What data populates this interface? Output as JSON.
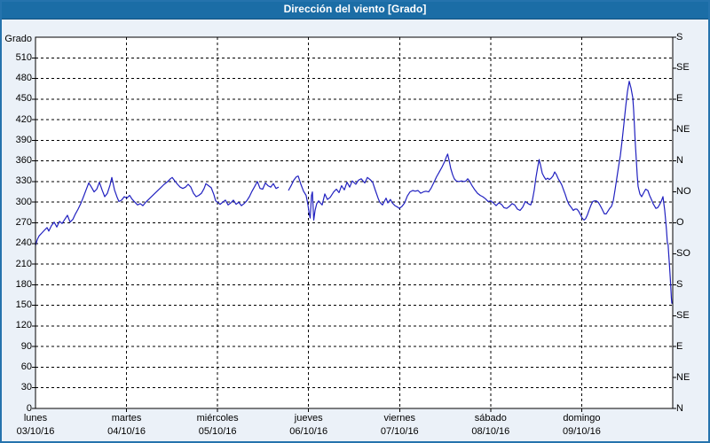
{
  "window": {
    "title": "Dirección del viento [Grado]"
  },
  "colors": {
    "titlebar": "#1B6DA6",
    "titlebar_text": "#FFFFFF",
    "frame_border": "#2573AD",
    "background": "#EBF1F8",
    "plot_background": "#FFFFFF",
    "grid": "#000000",
    "axis_text": "#000000",
    "line": "#2121C0"
  },
  "chart_data": {
    "type": "line",
    "title": "Dirección del viento [Grado]",
    "grid": "dashed",
    "y_left": {
      "label": "Grado",
      "min": 0,
      "max": 540,
      "step": 30,
      "tick_labels": [
        0,
        30,
        60,
        90,
        120,
        150,
        180,
        210,
        240,
        270,
        300,
        330,
        360,
        390,
        420,
        450,
        480,
        510
      ]
    },
    "y_right": {
      "step_deg": 45,
      "tick_labels_bottom_to_top": [
        "N",
        "NE",
        "E",
        "SE",
        "S",
        "SO",
        "O",
        "NO",
        "N",
        "NE",
        "E",
        "SE",
        "S"
      ]
    },
    "x": {
      "range_days": [
        0,
        7
      ],
      "days": [
        {
          "name": "lunes",
          "date": "03/10/16"
        },
        {
          "name": "martes",
          "date": "04/10/16"
        },
        {
          "name": "miércoles",
          "date": "05/10/16"
        },
        {
          "name": "jueves",
          "date": "06/10/16"
        },
        {
          "name": "viernes",
          "date": "07/10/16"
        },
        {
          "name": "sábado",
          "date": "08/10/16"
        },
        {
          "name": "domingo",
          "date": "09/10/16"
        }
      ]
    },
    "series": [
      {
        "name": "Dirección del viento",
        "unit": "Grado",
        "color": "#2121C0",
        "points": [
          [
            0,
            237
          ],
          [
            0.02,
            246
          ],
          [
            0.04,
            251
          ],
          [
            0.068,
            255
          ],
          [
            0.097,
            259
          ],
          [
            0.127,
            263
          ],
          [
            0.146,
            258
          ],
          [
            0.175,
            266
          ],
          [
            0.205,
            271
          ],
          [
            0.234,
            264
          ],
          [
            0.263,
            272
          ],
          [
            0.292,
            269
          ],
          [
            0.322,
            275
          ],
          [
            0.351,
            281
          ],
          [
            0.38,
            271
          ],
          [
            0.41,
            275
          ],
          [
            0.439,
            283
          ],
          [
            0.468,
            290
          ],
          [
            0.497,
            298
          ],
          [
            0.527,
            308
          ],
          [
            0.556,
            318
          ],
          [
            0.585,
            328
          ],
          [
            0.614,
            322
          ],
          [
            0.643,
            315
          ],
          [
            0.673,
            319
          ],
          [
            0.702,
            329
          ],
          [
            0.731,
            318
          ],
          [
            0.76,
            308
          ],
          [
            0.79,
            313
          ],
          [
            0.819,
            325
          ],
          [
            0.838,
            336
          ],
          [
            0.868,
            318
          ],
          [
            0.897,
            307
          ],
          [
            0.916,
            301
          ],
          [
            0.946,
            303
          ],
          [
            0.975,
            308
          ],
          [
            1.004,
            306
          ],
          [
            1.033,
            310
          ],
          [
            1.063,
            304
          ],
          [
            1.092,
            300
          ],
          [
            1.121,
            296
          ],
          [
            1.15,
            298
          ],
          [
            1.18,
            295
          ],
          [
            1.219,
            301
          ],
          [
            1.258,
            306
          ],
          [
            1.297,
            311
          ],
          [
            1.336,
            316
          ],
          [
            1.375,
            321
          ],
          [
            1.414,
            326
          ],
          [
            1.453,
            330
          ],
          [
            1.482,
            334
          ],
          [
            1.501,
            336
          ],
          [
            1.531,
            331
          ],
          [
            1.56,
            326
          ],
          [
            1.589,
            322
          ],
          [
            1.618,
            320
          ],
          [
            1.648,
            322
          ],
          [
            1.677,
            326
          ],
          [
            1.706,
            322
          ],
          [
            1.735,
            313
          ],
          [
            1.765,
            308
          ],
          [
            1.794,
            310
          ],
          [
            1.823,
            313
          ],
          [
            1.852,
            320
          ],
          [
            1.872,
            327
          ],
          [
            1.901,
            324
          ],
          [
            1.93,
            321
          ],
          [
            1.96,
            311
          ],
          [
            1.979,
            302
          ],
          [
            1.999,
            300
          ],
          [
            2.028,
            297
          ],
          [
            2.057,
            300
          ],
          [
            2.086,
            303
          ],
          [
            2.116,
            296
          ],
          [
            2.145,
            299
          ],
          [
            2.174,
            303
          ],
          [
            2.203,
            297
          ],
          [
            2.233,
            300
          ],
          [
            2.262,
            295
          ],
          [
            2.291,
            298
          ],
          [
            2.32,
            302
          ],
          [
            2.35,
            308
          ],
          [
            2.379,
            316
          ],
          [
            2.408,
            323
          ],
          [
            2.437,
            330
          ],
          [
            2.467,
            320
          ],
          [
            2.496,
            319
          ],
          [
            2.525,
            328
          ],
          [
            2.554,
            324
          ],
          [
            2.584,
            322
          ],
          [
            2.613,
            327
          ],
          [
            2.642,
            320
          ],
          [
            2.671,
            322
          ],
          [
            2.7,
            null
          ],
          [
            2.779,
            317
          ],
          [
            2.808,
            324
          ],
          [
            2.837,
            332
          ],
          [
            2.866,
            337
          ],
          [
            2.886,
            338
          ],
          [
            2.915,
            326
          ],
          [
            2.944,
            316
          ],
          [
            2.973,
            310
          ],
          [
            2.993,
            296
          ],
          [
            3.007,
            283
          ],
          [
            3.017,
            277
          ],
          [
            3.032,
            310
          ],
          [
            3.042,
            315
          ],
          [
            3.056,
            274
          ],
          [
            3.071,
            288
          ],
          [
            3.09,
            298
          ],
          [
            3.11,
            302
          ],
          [
            3.129,
            299
          ],
          [
            3.149,
            296
          ],
          [
            3.178,
            312
          ],
          [
            3.207,
            304
          ],
          [
            3.237,
            307
          ],
          [
            3.276,
            315
          ],
          [
            3.305,
            319
          ],
          [
            3.334,
            314
          ],
          [
            3.363,
            324
          ],
          [
            3.393,
            318
          ],
          [
            3.422,
            329
          ],
          [
            3.451,
            322
          ],
          [
            3.48,
            331
          ],
          [
            3.519,
            326
          ],
          [
            3.548,
            332
          ],
          [
            3.578,
            334
          ],
          [
            3.617,
            328
          ],
          [
            3.646,
            336
          ],
          [
            3.675,
            333
          ],
          [
            3.704,
            329
          ],
          [
            3.734,
            317
          ],
          [
            3.763,
            306
          ],
          [
            3.782,
            300
          ],
          [
            3.812,
            296
          ],
          [
            3.831,
            301
          ],
          [
            3.851,
            306
          ],
          [
            3.87,
            299
          ],
          [
            3.899,
            304
          ],
          [
            3.919,
            299
          ],
          [
            3.948,
            295
          ],
          [
            3.977,
            293
          ],
          [
            3.997,
            291
          ],
          [
            4.026,
            294
          ],
          [
            4.055,
            299
          ],
          [
            4.085,
            309
          ],
          [
            4.114,
            315
          ],
          [
            4.143,
            317
          ],
          [
            4.172,
            316
          ],
          [
            4.202,
            317
          ],
          [
            4.231,
            313
          ],
          [
            4.26,
            315
          ],
          [
            4.289,
            316
          ],
          [
            4.319,
            315
          ],
          [
            4.348,
            321
          ],
          [
            4.377,
            329
          ],
          [
            4.406,
            337
          ],
          [
            4.436,
            344
          ],
          [
            4.465,
            351
          ],
          [
            4.494,
            359
          ],
          [
            4.514,
            366
          ],
          [
            4.528,
            370
          ],
          [
            4.543,
            361
          ],
          [
            4.562,
            349
          ],
          [
            4.582,
            340
          ],
          [
            4.601,
            334
          ],
          [
            4.621,
            331
          ],
          [
            4.65,
            330
          ],
          [
            4.679,
            331
          ],
          [
            4.709,
            330
          ],
          [
            4.728,
            331
          ],
          [
            4.748,
            334
          ],
          [
            4.767,
            331
          ],
          [
            4.796,
            324
          ],
          [
            4.826,
            318
          ],
          [
            4.855,
            313
          ],
          [
            4.884,
            310
          ],
          [
            4.913,
            308
          ],
          [
            4.943,
            305
          ],
          [
            4.972,
            301
          ],
          [
            5.001,
            302
          ],
          [
            5.03,
            299
          ],
          [
            5.06,
            295
          ],
          [
            5.089,
            299
          ],
          [
            5.118,
            297
          ],
          [
            5.147,
            292
          ],
          [
            5.177,
            291
          ],
          [
            5.206,
            294
          ],
          [
            5.235,
            298
          ],
          [
            5.264,
            296
          ],
          [
            5.294,
            290
          ],
          [
            5.323,
            288
          ],
          [
            5.352,
            293
          ],
          [
            5.381,
            301
          ],
          [
            5.411,
            298
          ],
          [
            5.44,
            296
          ],
          [
            5.459,
            303
          ],
          [
            5.479,
            318
          ],
          [
            5.498,
            336
          ],
          [
            5.518,
            352
          ],
          [
            5.533,
            362
          ],
          [
            5.547,
            354
          ],
          [
            5.567,
            342
          ],
          [
            5.586,
            337
          ],
          [
            5.606,
            333
          ],
          [
            5.625,
            335
          ],
          [
            5.645,
            333
          ],
          [
            5.664,
            335
          ],
          [
            5.684,
            338
          ],
          [
            5.703,
            344
          ],
          [
            5.723,
            340
          ],
          [
            5.742,
            334
          ],
          [
            5.762,
            330
          ],
          [
            5.781,
            325
          ],
          [
            5.801,
            318
          ],
          [
            5.82,
            311
          ],
          [
            5.84,
            303
          ],
          [
            5.859,
            297
          ],
          [
            5.888,
            292
          ],
          [
            5.908,
            288
          ],
          [
            5.927,
            290
          ],
          [
            5.947,
            290
          ],
          [
            5.966,
            287
          ],
          [
            5.986,
            282
          ],
          [
            6.005,
            277
          ],
          [
            6.025,
            274
          ],
          [
            6.044,
            276
          ],
          [
            6.064,
            282
          ],
          [
            6.083,
            289
          ],
          [
            6.103,
            296
          ],
          [
            6.122,
            301
          ],
          [
            6.142,
            302
          ],
          [
            6.161,
            302
          ],
          [
            6.181,
            300
          ],
          [
            6.2,
            296
          ],
          [
            6.22,
            291
          ],
          [
            6.249,
            283
          ],
          [
            6.269,
            283
          ],
          [
            6.288,
            287
          ],
          [
            6.308,
            291
          ],
          [
            6.327,
            294
          ],
          [
            6.347,
            302
          ],
          [
            6.366,
            318
          ],
          [
            6.386,
            335
          ],
          [
            6.405,
            352
          ],
          [
            6.425,
            368
          ],
          [
            6.444,
            390
          ],
          [
            6.464,
            414
          ],
          [
            6.483,
            439
          ],
          [
            6.503,
            461
          ],
          [
            6.522,
            476
          ],
          [
            6.542,
            466
          ],
          [
            6.561,
            452
          ],
          [
            6.571,
            433
          ],
          [
            6.581,
            407
          ],
          [
            6.59,
            384
          ],
          [
            6.6,
            361
          ],
          [
            6.61,
            339
          ],
          [
            6.62,
            323
          ],
          [
            6.639,
            312
          ],
          [
            6.659,
            308
          ],
          [
            6.678,
            313
          ],
          [
            6.703,
            319
          ],
          [
            6.727,
            317
          ],
          [
            6.746,
            310
          ],
          [
            6.766,
            304
          ],
          [
            6.785,
            298
          ],
          [
            6.815,
            291
          ],
          [
            6.834,
            292
          ],
          [
            6.854,
            296
          ],
          [
            6.873,
            301
          ],
          [
            6.893,
            308
          ],
          [
            6.912,
            288
          ],
          [
            6.922,
            274
          ],
          [
            6.932,
            259
          ],
          [
            6.941,
            242
          ],
          [
            6.949,
            238
          ],
          [
            6.956,
            224
          ],
          [
            6.966,
            205
          ],
          [
            6.976,
            184
          ],
          [
            6.985,
            160
          ],
          [
            6.99,
            153
          ],
          [
            7,
            153
          ]
        ]
      }
    ]
  }
}
